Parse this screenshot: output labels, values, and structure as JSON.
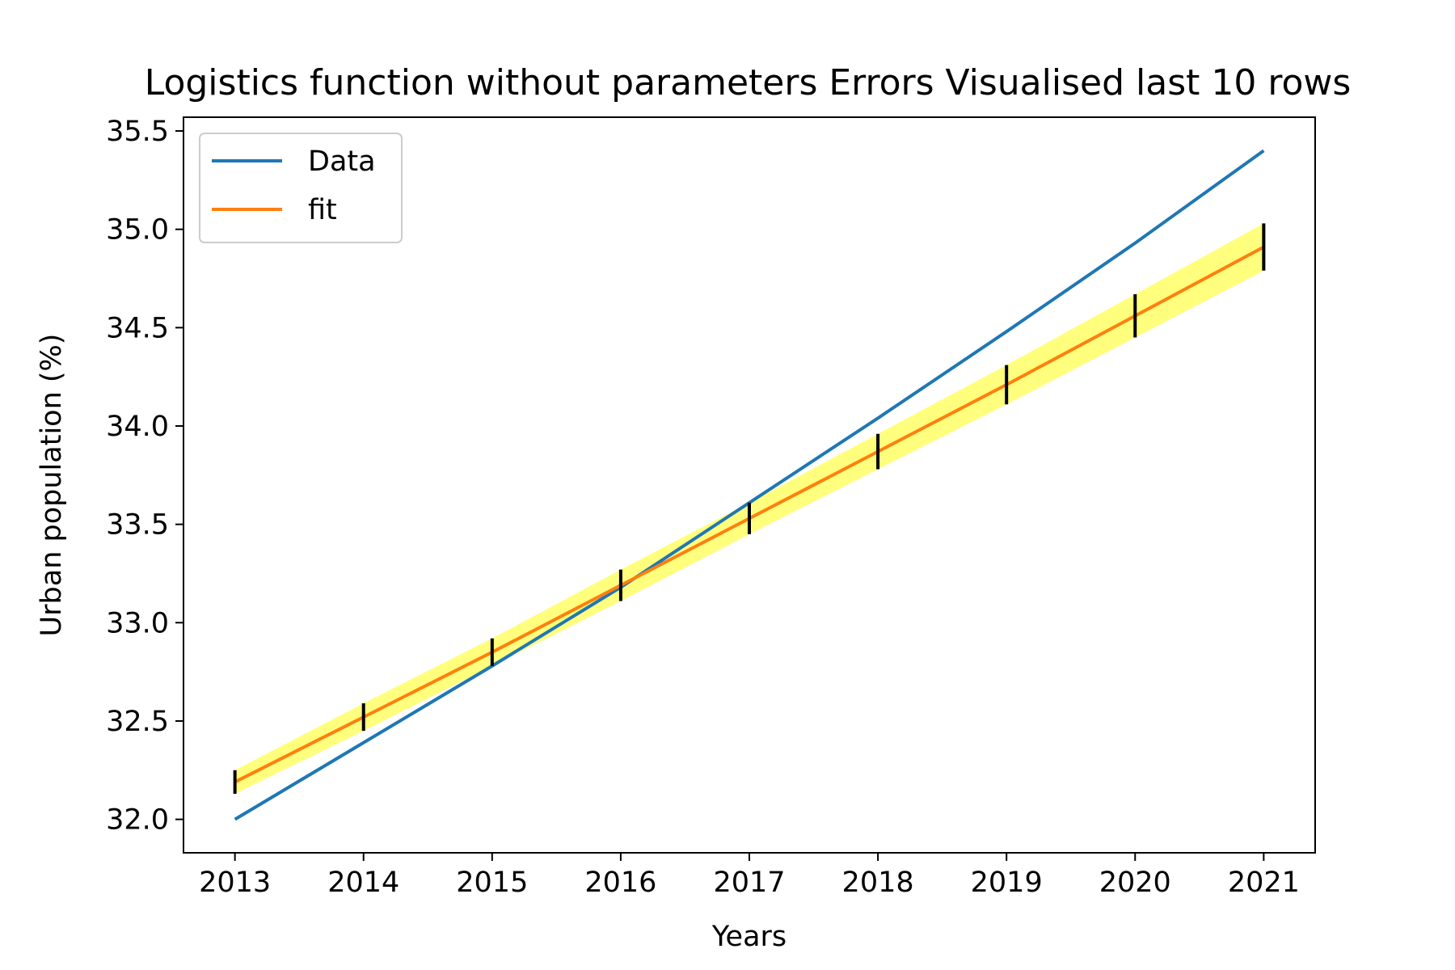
{
  "chart_data": {
    "type": "line",
    "title": "Logistics function without parameters  Errors Visualised last 10 rows",
    "xlabel": "Years",
    "ylabel": "Urban population (%)",
    "xlim": [
      2012.6,
      2021.4
    ],
    "ylim": [
      31.83,
      35.57
    ],
    "x": [
      2013,
      2014,
      2015,
      2016,
      2017,
      2018,
      2019,
      2020,
      2021
    ],
    "x_ticks": [
      "2013",
      "2014",
      "2015",
      "2016",
      "2017",
      "2018",
      "2019",
      "2020",
      "2021"
    ],
    "y_ticks": [
      32.0,
      32.5,
      33.0,
      33.5,
      34.0,
      34.5,
      35.0,
      35.5
    ],
    "y_tick_labels": [
      "32.0",
      "32.5",
      "33.0",
      "33.5",
      "34.0",
      "34.5",
      "35.0",
      "35.5"
    ],
    "series": [
      {
        "name": "Data",
        "color": "#1f77b4",
        "values": [
          32.0,
          32.39,
          32.78,
          33.18,
          33.61,
          34.04,
          34.48,
          34.93,
          35.4
        ]
      },
      {
        "name": "fit",
        "color": "#ff7f0e",
        "values": [
          32.19,
          32.52,
          32.85,
          33.19,
          33.53,
          33.87,
          34.21,
          34.56,
          34.91
        ],
        "error": [
          0.06,
          0.07,
          0.07,
          0.08,
          0.08,
          0.09,
          0.1,
          0.11,
          0.12
        ]
      }
    ],
    "band_color": "#ffff66",
    "errorbar_color": "#000000",
    "grid": false,
    "legend_position": "upper-left"
  }
}
